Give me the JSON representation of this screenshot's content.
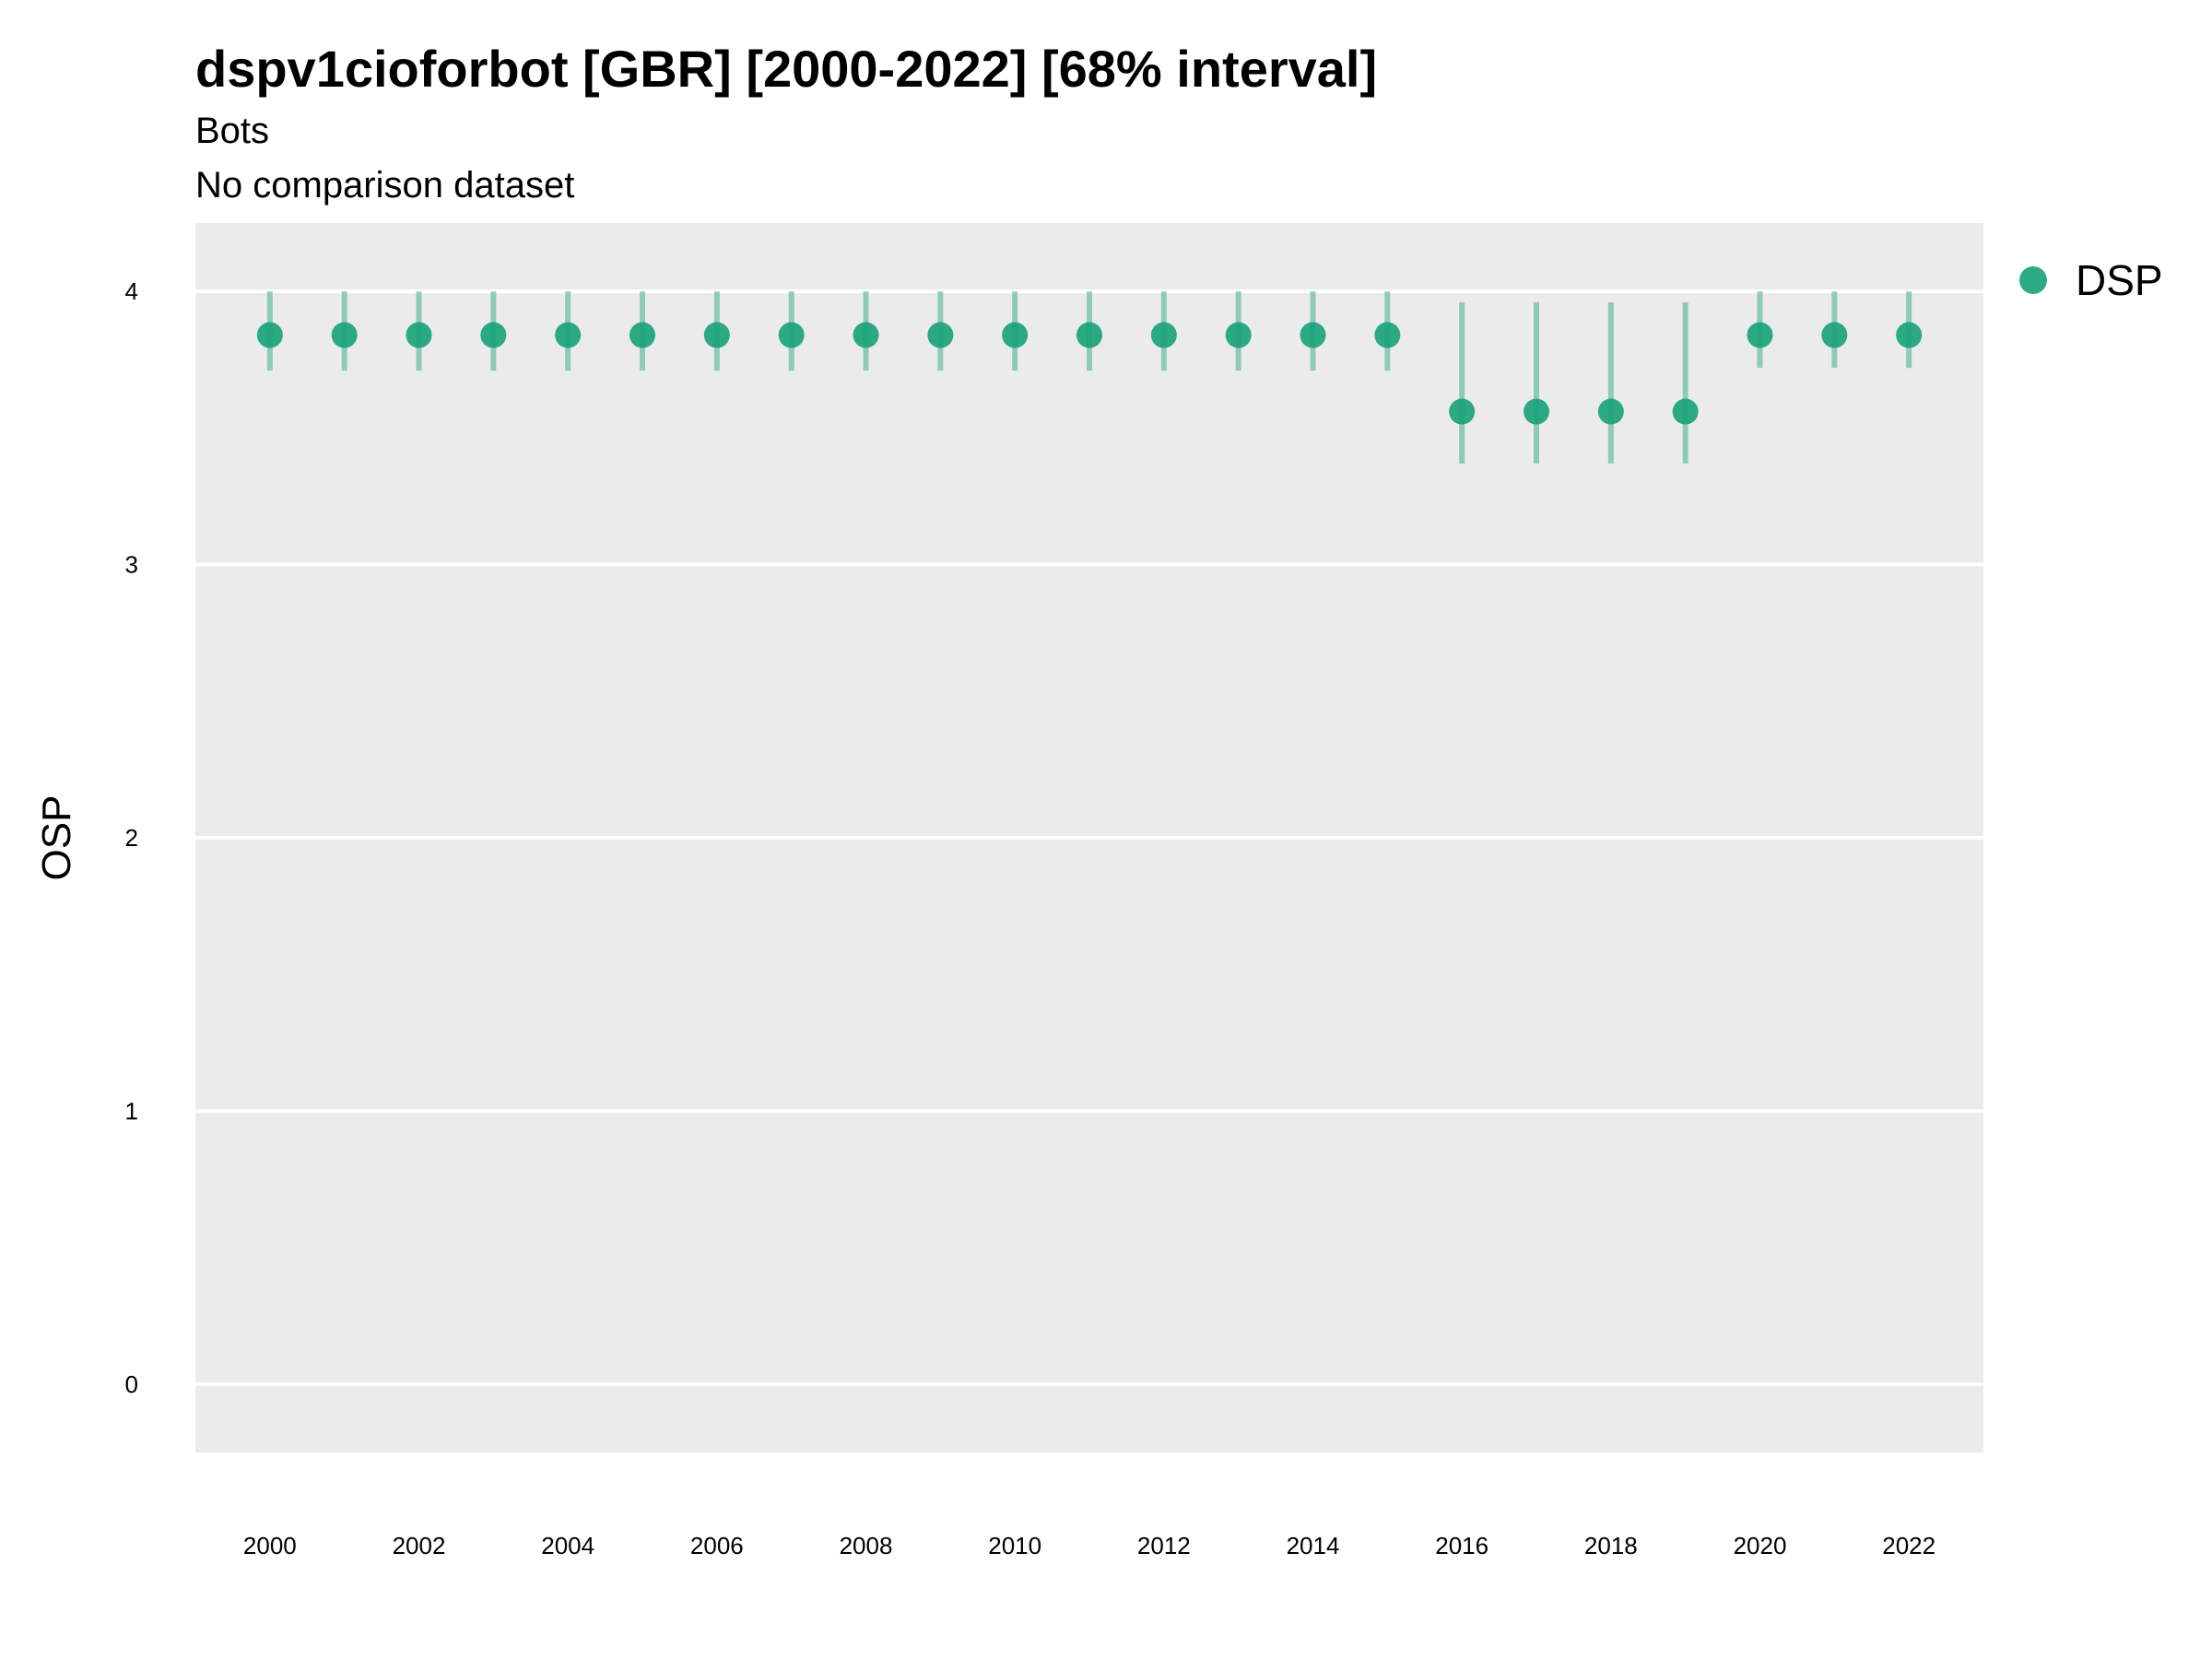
{
  "chart_data": {
    "type": "scatter",
    "title": "dspv1cioforbot [GBR] [2000-2022] [68% interval]",
    "subtitle_lines": [
      "Bots",
      "No comparison dataset"
    ],
    "xlabel": "",
    "ylabel": "OSP",
    "xlim": [
      1999,
      2023
    ],
    "ylim": [
      -0.25,
      4.25
    ],
    "x_ticks": [
      "2000",
      "2002",
      "2004",
      "2006",
      "2008",
      "2010",
      "2012",
      "2014",
      "2016",
      "2018",
      "2020",
      "2022"
    ],
    "y_ticks": [
      "0",
      "1",
      "2",
      "3",
      "4"
    ],
    "grid": true,
    "legend": {
      "position": "right",
      "entries": [
        "DSP"
      ]
    },
    "series": [
      {
        "name": "DSP",
        "color": "#1aa37a",
        "points": [
          {
            "x": 2000,
            "y": 3.84,
            "low": 3.71,
            "high": 4.0
          },
          {
            "x": 2001,
            "y": 3.84,
            "low": 3.71,
            "high": 4.0
          },
          {
            "x": 2002,
            "y": 3.84,
            "low": 3.71,
            "high": 4.0
          },
          {
            "x": 2003,
            "y": 3.84,
            "low": 3.71,
            "high": 4.0
          },
          {
            "x": 2004,
            "y": 3.84,
            "low": 3.71,
            "high": 4.0
          },
          {
            "x": 2005,
            "y": 3.84,
            "low": 3.71,
            "high": 4.0
          },
          {
            "x": 2006,
            "y": 3.84,
            "low": 3.71,
            "high": 4.0
          },
          {
            "x": 2007,
            "y": 3.84,
            "low": 3.71,
            "high": 4.0
          },
          {
            "x": 2008,
            "y": 3.84,
            "low": 3.71,
            "high": 4.0
          },
          {
            "x": 2009,
            "y": 3.84,
            "low": 3.71,
            "high": 4.0
          },
          {
            "x": 2010,
            "y": 3.84,
            "low": 3.71,
            "high": 4.0
          },
          {
            "x": 2011,
            "y": 3.84,
            "low": 3.71,
            "high": 4.0
          },
          {
            "x": 2012,
            "y": 3.84,
            "low": 3.71,
            "high": 4.0
          },
          {
            "x": 2013,
            "y": 3.84,
            "low": 3.71,
            "high": 4.0
          },
          {
            "x": 2014,
            "y": 3.84,
            "low": 3.71,
            "high": 4.0
          },
          {
            "x": 2015,
            "y": 3.84,
            "low": 3.71,
            "high": 4.0
          },
          {
            "x": 2016,
            "y": 3.56,
            "low": 3.37,
            "high": 3.96
          },
          {
            "x": 2017,
            "y": 3.56,
            "low": 3.37,
            "high": 3.96
          },
          {
            "x": 2018,
            "y": 3.56,
            "low": 3.37,
            "high": 3.96
          },
          {
            "x": 2019,
            "y": 3.56,
            "low": 3.37,
            "high": 3.96
          },
          {
            "x": 2020,
            "y": 3.84,
            "low": 3.72,
            "high": 4.0
          },
          {
            "x": 2021,
            "y": 3.84,
            "low": 3.72,
            "high": 4.0
          },
          {
            "x": 2022,
            "y": 3.84,
            "low": 3.72,
            "high": 4.0
          }
        ]
      }
    ],
    "colors": {
      "panel": "#ebebeb",
      "grid": "#ffffff"
    }
  }
}
